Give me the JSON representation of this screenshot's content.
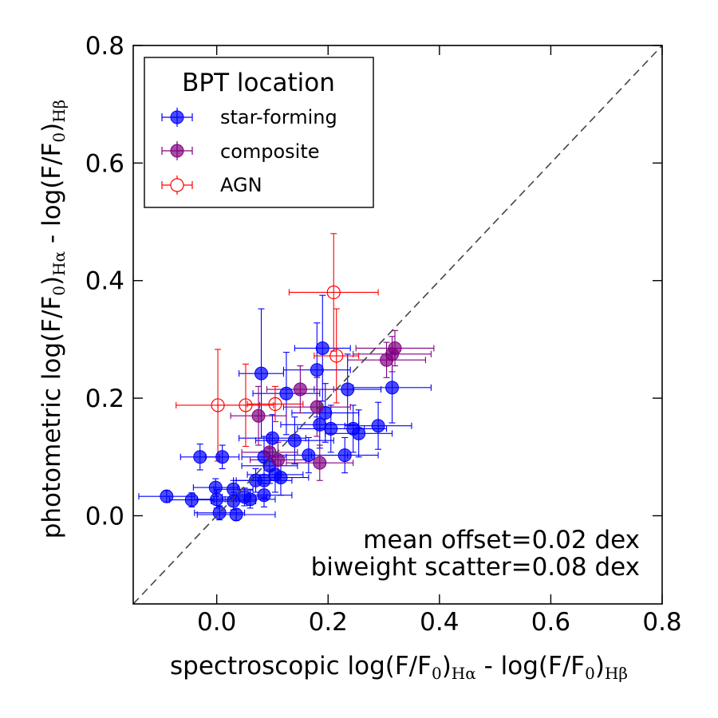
{
  "chart_data": {
    "type": "scatter",
    "xlabel": {
      "main": "spectroscopic log(F/F",
      "sub0": "0",
      "mid": ")",
      "sub1": "Hα",
      "sep": " - log(F/F",
      "sub2": "0",
      "mid2": ")",
      "sub3": "Hβ"
    },
    "ylabel": {
      "main": "photometric log(F/F",
      "sub0": "0",
      "mid": ")",
      "sub1": "Hα",
      "sep": " - log(F/F",
      "sub2": "0",
      "mid2": ")",
      "sub3": "Hβ"
    },
    "xlim": [
      -0.15,
      0.8
    ],
    "ylim": [
      -0.15,
      0.8
    ],
    "xticks": [
      0.0,
      0.2,
      0.4,
      0.6,
      0.8
    ],
    "xtick_labels": [
      "0.0",
      "0.2",
      "0.4",
      "0.6",
      "0.8"
    ],
    "yticks": [
      0.0,
      0.2,
      0.4,
      0.6,
      0.8
    ],
    "ytick_labels": [
      "0.0",
      "0.2",
      "0.4",
      "0.6",
      "0.8"
    ],
    "one_to_one_line": true,
    "legend": {
      "title": "BPT location",
      "placement": "top-left",
      "entries": [
        "star-forming",
        "composite",
        "AGN"
      ]
    },
    "annotations": [
      "mean offset=0.02 dex",
      "biweight scatter=0.08 dex"
    ],
    "series": [
      {
        "name": "star-forming",
        "color": "#0000ff",
        "marker": "filled-circle",
        "points": [
          {
            "x": -0.09,
            "y": 0.033,
            "xerr": 0.05,
            "yerr": 0.01
          },
          {
            "x": -0.045,
            "y": 0.027,
            "xerr": 0.04,
            "yerr": 0.012
          },
          {
            "x": -0.03,
            "y": 0.1,
            "xerr": 0.035,
            "yerr": 0.022
          },
          {
            "x": 0.01,
            "y": 0.1,
            "xerr": 0.03,
            "yerr": 0.02
          },
          {
            "x": -0.002,
            "y": 0.048,
            "xerr": 0.04,
            "yerr": 0.015
          },
          {
            "x": 0.0,
            "y": 0.028,
            "xerr": 0.035,
            "yerr": 0.015
          },
          {
            "x": 0.005,
            "y": 0.005,
            "xerr": 0.045,
            "yerr": 0.012
          },
          {
            "x": 0.03,
            "y": 0.045,
            "xerr": 0.035,
            "yerr": 0.015
          },
          {
            "x": 0.035,
            "y": 0.002,
            "xerr": 0.07,
            "yerr": 0.01
          },
          {
            "x": 0.03,
            "y": 0.025,
            "xerr": 0.04,
            "yerr": 0.015
          },
          {
            "x": 0.05,
            "y": 0.032,
            "xerr": 0.04,
            "yerr": 0.015
          },
          {
            "x": 0.06,
            "y": 0.028,
            "xerr": 0.045,
            "yerr": 0.015
          },
          {
            "x": 0.07,
            "y": 0.06,
            "xerr": 0.04,
            "yerr": 0.02
          },
          {
            "x": 0.08,
            "y": 0.242,
            "xerr": 0.04,
            "yerr": 0.11
          },
          {
            "x": 0.085,
            "y": 0.035,
            "xerr": 0.05,
            "yerr": 0.02
          },
          {
            "x": 0.085,
            "y": 0.06,
            "xerr": 0.05,
            "yerr": 0.03
          },
          {
            "x": 0.085,
            "y": 0.1,
            "xerr": 0.04,
            "yerr": 0.035
          },
          {
            "x": 0.095,
            "y": 0.085,
            "xerr": 0.05,
            "yerr": 0.03
          },
          {
            "x": 0.1,
            "y": 0.132,
            "xerr": 0.06,
            "yerr": 0.04
          },
          {
            "x": 0.105,
            "y": 0.07,
            "xerr": 0.05,
            "yerr": 0.03
          },
          {
            "x": 0.115,
            "y": 0.065,
            "xerr": 0.05,
            "yerr": 0.03
          },
          {
            "x": 0.125,
            "y": 0.208,
            "xerr": 0.06,
            "yerr": 0.07
          },
          {
            "x": 0.14,
            "y": 0.128,
            "xerr": 0.07,
            "yerr": 0.04
          },
          {
            "x": 0.165,
            "y": 0.103,
            "xerr": 0.07,
            "yerr": 0.03
          },
          {
            "x": 0.18,
            "y": 0.248,
            "xerr": 0.06,
            "yerr": 0.08
          },
          {
            "x": 0.185,
            "y": 0.155,
            "xerr": 0.07,
            "yerr": 0.04
          },
          {
            "x": 0.19,
            "y": 0.285,
            "xerr": 0.05,
            "yerr": 0.09
          },
          {
            "x": 0.195,
            "y": 0.175,
            "xerr": 0.06,
            "yerr": 0.05
          },
          {
            "x": 0.205,
            "y": 0.148,
            "xerr": 0.06,
            "yerr": 0.04
          },
          {
            "x": 0.23,
            "y": 0.103,
            "xerr": 0.06,
            "yerr": 0.03
          },
          {
            "x": 0.235,
            "y": 0.215,
            "xerr": 0.06,
            "yerr": 0.06
          },
          {
            "x": 0.245,
            "y": 0.148,
            "xerr": 0.06,
            "yerr": 0.04
          },
          {
            "x": 0.255,
            "y": 0.14,
            "xerr": 0.06,
            "yerr": 0.04
          },
          {
            "x": 0.29,
            "y": 0.153,
            "xerr": 0.06,
            "yerr": 0.04
          },
          {
            "x": 0.315,
            "y": 0.218,
            "xerr": 0.07,
            "yerr": 0.06
          }
        ]
      },
      {
        "name": "composite",
        "color": "#800080",
        "marker": "filled-circle",
        "points": [
          {
            "x": 0.075,
            "y": 0.17,
            "xerr": 0.05,
            "yerr": 0.05
          },
          {
            "x": 0.095,
            "y": 0.108,
            "xerr": 0.05,
            "yerr": 0.03
          },
          {
            "x": 0.11,
            "y": 0.095,
            "xerr": 0.05,
            "yerr": 0.03
          },
          {
            "x": 0.15,
            "y": 0.215,
            "xerr": 0.06,
            "yerr": 0.04
          },
          {
            "x": 0.18,
            "y": 0.185,
            "xerr": 0.06,
            "yerr": 0.05
          },
          {
            "x": 0.185,
            "y": 0.09,
            "xerr": 0.06,
            "yerr": 0.03
          },
          {
            "x": 0.305,
            "y": 0.265,
            "xerr": 0.07,
            "yerr": 0.03
          },
          {
            "x": 0.315,
            "y": 0.275,
            "xerr": 0.07,
            "yerr": 0.03
          },
          {
            "x": 0.32,
            "y": 0.285,
            "xerr": 0.07,
            "yerr": 0.03
          }
        ]
      },
      {
        "name": "AGN",
        "color": "#ff0000",
        "marker": "open-circle",
        "points": [
          {
            "x": 0.002,
            "y": 0.188,
            "xerr": 0.075,
            "yerr": 0.095
          },
          {
            "x": 0.052,
            "y": 0.188,
            "xerr": 0.05,
            "yerr": 0.07
          },
          {
            "x": 0.105,
            "y": 0.19,
            "xerr": 0.05,
            "yerr": 0.03
          },
          {
            "x": 0.21,
            "y": 0.38,
            "xerr": 0.08,
            "yerr": 0.1
          },
          {
            "x": 0.215,
            "y": 0.272,
            "xerr": 0.04,
            "yerr": 0.08
          }
        ]
      }
    ]
  }
}
